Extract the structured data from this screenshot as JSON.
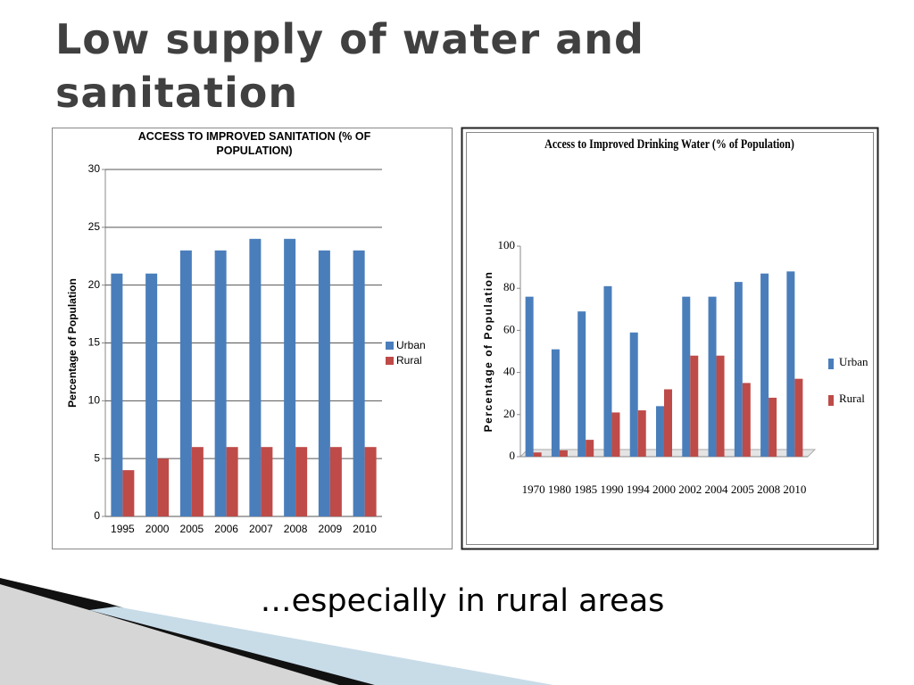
{
  "slide": {
    "title": "Low supply of water and sanitation",
    "caption": "…especially in rural areas"
  },
  "chart_data": [
    {
      "type": "bar",
      "title": "ACCESS TO IMPROVED SANITATION (% OF POPULATION)",
      "ylabel": "Percentage of Population",
      "categories": [
        "1995",
        "2000",
        "2005",
        "2006",
        "2007",
        "2008",
        "2009",
        "2010"
      ],
      "series": [
        {
          "name": "Urban",
          "color": "#4a7ebb",
          "values": [
            21,
            21,
            23,
            23,
            24,
            24,
            23,
            23
          ]
        },
        {
          "name": "Rural",
          "color": "#be4b48",
          "values": [
            4,
            5,
            6,
            6,
            6,
            6,
            6,
            6
          ]
        }
      ],
      "ylim": [
        0,
        30
      ],
      "yticks": [
        0,
        5,
        10,
        15,
        20,
        25,
        30
      ],
      "grid": true,
      "legend": "right"
    },
    {
      "type": "bar",
      "title": "Access to Improved Drinking Water (% of Population)",
      "ylabel": "Percentage of Population",
      "categories": [
        "1970",
        "1980",
        "1985",
        "1990",
        "1994",
        "2000",
        "2002",
        "2004",
        "2005",
        "2008",
        "2010"
      ],
      "series": [
        {
          "name": "Urban",
          "color": "#4a7ebb",
          "values": [
            76,
            51,
            69,
            81,
            59,
            24,
            76,
            76,
            83,
            87,
            88
          ]
        },
        {
          "name": "Rural",
          "color": "#be4b48",
          "values": [
            2,
            3,
            8,
            21,
            22,
            32,
            48,
            48,
            35,
            28,
            37
          ]
        }
      ],
      "ylim": [
        0,
        100
      ],
      "yticks": [
        0,
        20,
        40,
        60,
        80,
        100
      ],
      "grid": false,
      "legend": "right"
    }
  ]
}
